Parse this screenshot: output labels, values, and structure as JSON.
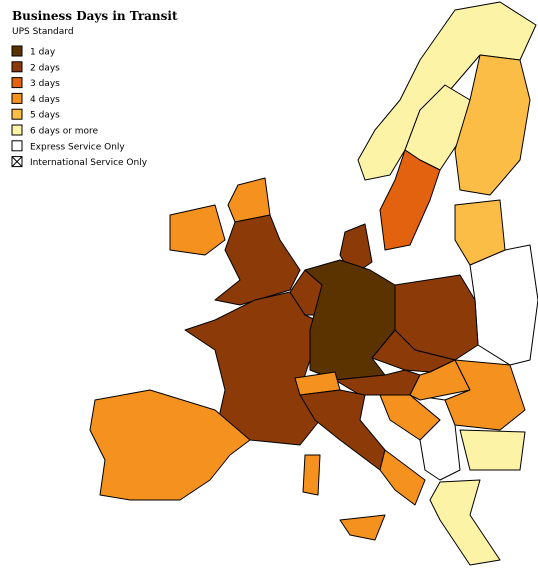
{
  "title": "Business Days in Transit",
  "subtitle": "UPS Standard",
  "legend": [
    {
      "label": "1 day",
      "color": "#5a3300"
    },
    {
      "label": "2 days",
      "color": "#8b3a08"
    },
    {
      "label": "3 days",
      "color": "#e2620f"
    },
    {
      "label": "4 days",
      "color": "#f5921f"
    },
    {
      "label": "5 days",
      "color": "#fbbd45"
    },
    {
      "label": "6 days or more",
      "color": "#fdf3a6"
    },
    {
      "label": "Express Service Only",
      "color": "#ffffff"
    },
    {
      "label": "International Service Only",
      "color": "#ffffff",
      "crossed": true
    }
  ]
}
